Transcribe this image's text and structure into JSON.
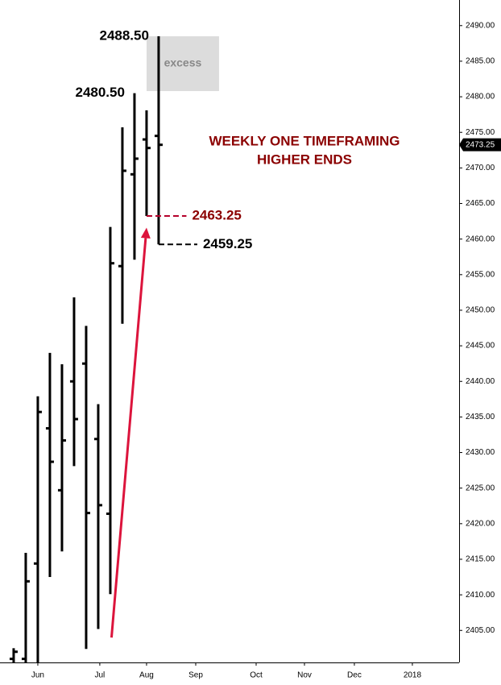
{
  "chart_data": {
    "type": "ohlc",
    "title": [
      "WEEKLY ONE TIMEFRAMING",
      "HIGHER ENDS"
    ],
    "title_color": "#8b0000",
    "color": "#000000",
    "x": [
      0,
      1,
      2,
      3,
      4,
      5,
      6,
      7,
      8,
      9,
      10,
      11,
      12
    ],
    "open": [
      2401,
      2401,
      2414.4,
      2433.4,
      2424.7,
      2440,
      2442.5,
      2431.9,
      2421.4,
      2456.2,
      2469.1,
      2474,
      2474.5
    ],
    "high": [
      2402.5,
      2415.9,
      2437.9,
      2444,
      2442.4,
      2451.8,
      2447.8,
      2436.8,
      2461.7,
      2475.7,
      2480.5,
      2478.1,
      2488.5
    ],
    "low": [
      2400,
      2400,
      2400,
      2412.5,
      2416.1,
      2428.1,
      2402.4,
      2405.2,
      2410.1,
      2448.1,
      2457.1,
      2463.25,
      2459.25
    ],
    "close": [
      2402,
      2411.9,
      2435.7,
      2428.7,
      2431.7,
      2434.7,
      2421.5,
      2422.6,
      2456.6,
      2469.6,
      2471.3,
      2472.8,
      2473.25
    ],
    "xlim": [
      -1.13,
      36.87
    ],
    "xticks": [
      {
        "value": 2,
        "label": "Jun"
      },
      {
        "value": 7.13,
        "label": "Jul"
      },
      {
        "value": 11,
        "label": "Aug"
      },
      {
        "value": 15.07,
        "label": "Sep"
      },
      {
        "value": 20.07,
        "label": "Oct"
      },
      {
        "value": 24.07,
        "label": "Nov"
      },
      {
        "value": 28.2,
        "label": "Dec"
      },
      {
        "value": 33,
        "label": "2018"
      }
    ],
    "ylim": [
      2400.5,
      2493.6
    ],
    "yticks": [
      {
        "value": 2405,
        "label": "2405.00"
      },
      {
        "value": 2410,
        "label": "2410.00"
      },
      {
        "value": 2415,
        "label": "2415.00"
      },
      {
        "value": 2420,
        "label": "2420.00"
      },
      {
        "value": 2425,
        "label": "2425.00"
      },
      {
        "value": 2430,
        "label": "2430.00"
      },
      {
        "value": 2435,
        "label": "2435.00"
      },
      {
        "value": 2440,
        "label": "2440.00"
      },
      {
        "value": 2445,
        "label": "2445.00"
      },
      {
        "value": 2450,
        "label": "2450.00"
      },
      {
        "value": 2455,
        "label": "2455.00"
      },
      {
        "value": 2460,
        "label": "2460.00"
      },
      {
        "value": 2465,
        "label": "2465.00"
      },
      {
        "value": 2470,
        "label": "2470.00"
      },
      {
        "value": 2475,
        "label": "2475.00"
      },
      {
        "value": 2480,
        "label": "2480.00"
      },
      {
        "value": 2485,
        "label": "2485.00"
      },
      {
        "value": 2490,
        "label": "2490.00"
      }
    ],
    "last_price": {
      "value": 2473.25,
      "label": "2473.25"
    },
    "price_labels": [
      {
        "value": 2488.5,
        "label": "2488.50",
        "x": 12,
        "color": "#000000"
      },
      {
        "value": 2480.5,
        "label": "2480.50",
        "x": 10,
        "color": "#000000"
      }
    ],
    "level_lines": [
      {
        "value": 2463.25,
        "label": "2463.25",
        "x": [
          11,
          14.3
        ],
        "color": "#b5002a",
        "text_color": "#8b0000"
      },
      {
        "value": 2459.25,
        "label": "2459.25",
        "x": [
          12,
          15.2
        ],
        "color": "#000000",
        "text_color": "#000000"
      }
    ],
    "excess_box": {
      "text": "excess",
      "x": [
        11,
        17
      ],
      "y": [
        2480.8,
        2488.5
      ]
    },
    "arrow": {
      "from": [
        8.1,
        2404
      ],
      "to": [
        11,
        2461.6
      ],
      "color": "#dc143c"
    }
  }
}
